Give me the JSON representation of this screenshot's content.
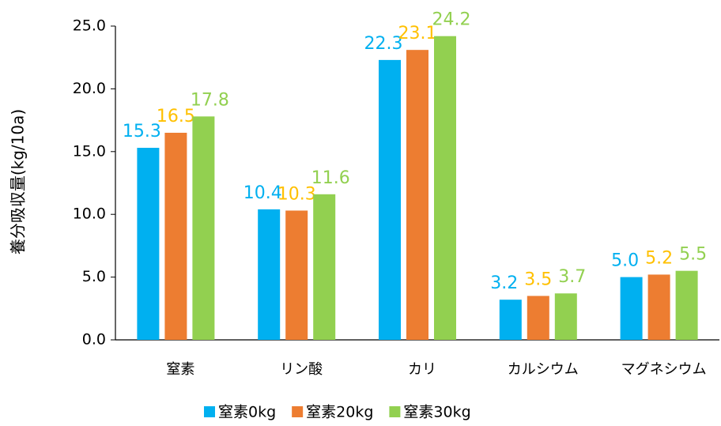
{
  "chart_data": {
    "type": "bar",
    "y_label": "養分吸収量(kg/10a)",
    "categories": [
      "窒素",
      "リン酸",
      "カリ",
      "カルシウム",
      "マグネシウム"
    ],
    "series": [
      {
        "name": "窒素0kg",
        "color": "#00b0f0",
        "label_color": "#00b0f0",
        "values": [
          15.3,
          10.4,
          22.3,
          3.2,
          5
        ],
        "value_labels": [
          "15.3",
          "10.4",
          "22.3",
          "3.2",
          "5.0"
        ]
      },
      {
        "name": "窒素20kg",
        "color": "#ed7d31",
        "label_color": "#ffc000",
        "values": [
          16.5,
          10.3,
          23.1,
          3.5,
          5.2
        ],
        "value_labels": [
          "16.5",
          "10.3",
          "23.1",
          "3.5",
          "5.2"
        ]
      },
      {
        "name": "窒素30kg",
        "color": "#92d050",
        "label_color": "#92d050",
        "values": [
          17.8,
          11.6,
          24.2,
          3.7,
          5.5
        ],
        "value_labels": [
          "17.8",
          "11.6",
          "24.2",
          "3.7",
          "5.5"
        ]
      }
    ],
    "ylim": [
      0,
      25
    ],
    "yticks": [
      {
        "value": 0,
        "label": "0.0"
      },
      {
        "value": 5,
        "label": "5.0"
      },
      {
        "value": 10,
        "label": "10.0"
      },
      {
        "value": 15,
        "label": "15.0"
      },
      {
        "value": 20,
        "label": "20.0"
      },
      {
        "value": 25,
        "label": "25.0"
      }
    ],
    "legend": "bottom"
  }
}
